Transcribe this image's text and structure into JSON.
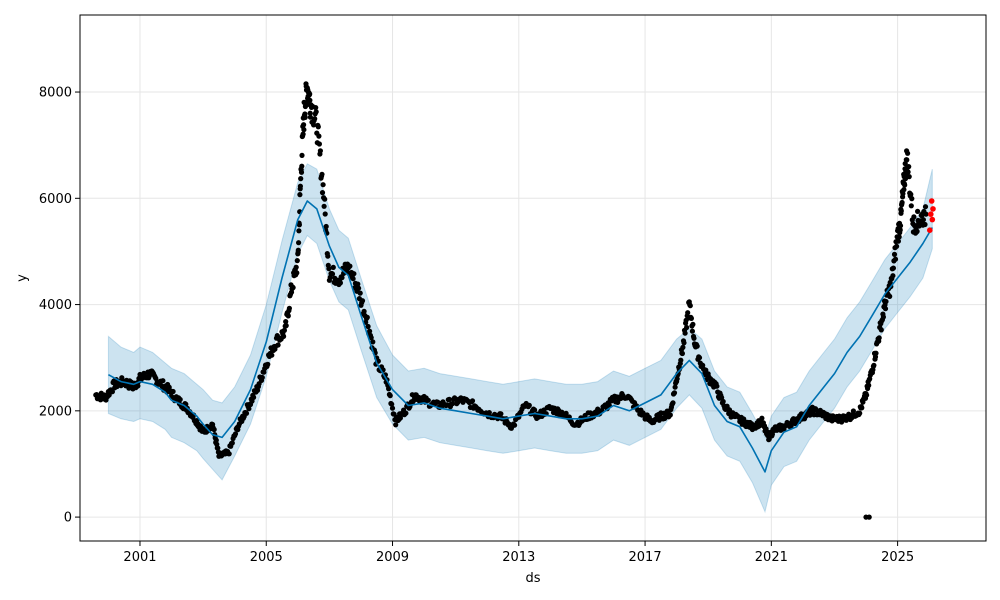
{
  "chart_data": {
    "type": "line",
    "title": "",
    "xlabel": "ds",
    "ylabel": "y",
    "grid": true,
    "xlim": [
      1999.1,
      2027.8
    ],
    "ylim": [
      -450,
      9450
    ],
    "x_ticks": [
      {
        "value": 2001,
        "label": "2001"
      },
      {
        "value": 2005,
        "label": "2005"
      },
      {
        "value": 2009,
        "label": "2009"
      },
      {
        "value": 2013,
        "label": "2013"
      },
      {
        "value": 2017,
        "label": "2017"
      },
      {
        "value": 2021,
        "label": "2021"
      },
      {
        "value": 2025,
        "label": "2025"
      }
    ],
    "y_ticks": [
      {
        "value": 0,
        "label": "0"
      },
      {
        "value": 2000,
        "label": "2000"
      },
      {
        "value": 4000,
        "label": "4000"
      },
      {
        "value": 6000,
        "label": "6000"
      },
      {
        "value": 8000,
        "label": "8000"
      }
    ],
    "colors": {
      "forecast": "#0072B2",
      "uncertainty": "#0072B2",
      "observed": "#000000",
      "recent": "#FF0000"
    },
    "forecast": {
      "x": [
        2000.0,
        2000.4,
        2000.8,
        2001.0,
        2001.4,
        2001.8,
        2002.0,
        2002.4,
        2002.8,
        2003.0,
        2003.3,
        2003.6,
        2004.0,
        2004.5,
        2005.0,
        2005.5,
        2006.0,
        2006.3,
        2006.6,
        2007.0,
        2007.3,
        2007.6,
        2008.0,
        2008.5,
        2009.0,
        2009.5,
        2010.0,
        2010.5,
        2011.0,
        2011.5,
        2012.0,
        2012.5,
        2013.0,
        2013.5,
        2014.0,
        2014.5,
        2015.0,
        2015.5,
        2016.0,
        2016.5,
        2017.0,
        2017.5,
        2018.0,
        2018.4,
        2018.8,
        2019.2,
        2019.6,
        2020.0,
        2020.4,
        2020.8,
        2021.0,
        2021.4,
        2021.8,
        2022.2,
        2022.6,
        2023.0,
        2023.4,
        2023.8,
        2024.2,
        2024.6,
        2025.0,
        2025.4,
        2025.8,
        2026.1
      ],
      "y": [
        2680,
        2550,
        2500,
        2550,
        2500,
        2350,
        2200,
        2100,
        1900,
        1750,
        1550,
        1500,
        1800,
        2400,
        3300,
        4500,
        5600,
        5950,
        5800,
        5100,
        4700,
        4550,
        3800,
        2900,
        2400,
        2100,
        2150,
        2050,
        2000,
        1950,
        1900,
        1850,
        1900,
        1950,
        1900,
        1850,
        1850,
        1900,
        2100,
        2000,
        2150,
        2300,
        2700,
        2950,
        2700,
        2100,
        1800,
        1700,
        1300,
        850,
        1250,
        1600,
        1700,
        2100,
        2400,
        2700,
        3100,
        3400,
        3800,
        4200,
        4500,
        4800,
        5150,
        5450
      ]
    },
    "uncertainty_band": {
      "x": [
        2000.0,
        2000.4,
        2000.8,
        2001.0,
        2001.4,
        2001.8,
        2002.0,
        2002.4,
        2002.8,
        2003.0,
        2003.3,
        2003.6,
        2004.0,
        2004.5,
        2005.0,
        2005.5,
        2006.0,
        2006.3,
        2006.6,
        2007.0,
        2007.3,
        2007.6,
        2008.0,
        2008.5,
        2009.0,
        2009.5,
        2010.0,
        2010.5,
        2011.0,
        2011.5,
        2012.0,
        2012.5,
        2013.0,
        2013.5,
        2014.0,
        2014.5,
        2015.0,
        2015.5,
        2016.0,
        2016.5,
        2017.0,
        2017.5,
        2018.0,
        2018.4,
        2018.8,
        2019.2,
        2019.6,
        2020.0,
        2020.4,
        2020.8,
        2021.0,
        2021.4,
        2021.8,
        2022.2,
        2022.6,
        2023.0,
        2023.4,
        2023.8,
        2024.2,
        2024.6,
        2025.0,
        2025.4,
        2025.8,
        2026.1
      ],
      "upper": [
        3400,
        3200,
        3100,
        3200,
        3100,
        2900,
        2800,
        2700,
        2500,
        2400,
        2200,
        2150,
        2450,
        3050,
        4000,
        5200,
        6300,
        6650,
        6550,
        5800,
        5400,
        5250,
        4500,
        3600,
        3050,
        2750,
        2800,
        2700,
        2650,
        2600,
        2550,
        2500,
        2550,
        2600,
        2550,
        2500,
        2500,
        2550,
        2750,
        2650,
        2800,
        2950,
        3350,
        3550,
        3350,
        2750,
        2450,
        2350,
        1950,
        1500,
        1900,
        2250,
        2350,
        2750,
        3050,
        3350,
        3750,
        4050,
        4450,
        4850,
        5150,
        5450,
        5800,
        6550
      ],
      "lower": [
        1950,
        1850,
        1800,
        1850,
        1800,
        1650,
        1500,
        1400,
        1250,
        1100,
        900,
        700,
        1150,
        1750,
        2650,
        3850,
        4950,
        5300,
        5150,
        4450,
        4050,
        3900,
        3150,
        2250,
        1750,
        1450,
        1500,
        1400,
        1350,
        1300,
        1250,
        1200,
        1250,
        1300,
        1250,
        1200,
        1200,
        1250,
        1450,
        1350,
        1500,
        1650,
        2050,
        2300,
        2050,
        1450,
        1150,
        1050,
        650,
        100,
        600,
        950,
        1050,
        1450,
        1750,
        2050,
        2450,
        2750,
        3150,
        3550,
        3850,
        4150,
        4500,
        5050
      ]
    },
    "observed": {
      "x": [
        1999.6,
        1999.9,
        2000.2,
        2000.5,
        2000.8,
        2001.0,
        2001.3,
        2001.6,
        2001.9,
        2002.2,
        2002.5,
        2002.8,
        2003.0,
        2003.3,
        2003.5,
        2003.8,
        2004.1,
        2004.4,
        2004.7,
        2005.0,
        2005.3,
        2005.6,
        2005.8,
        2006.0,
        2006.1,
        2006.2,
        2006.3,
        2006.4,
        2006.6,
        2006.8,
        2007.0,
        2007.3,
        2007.6,
        2007.9,
        2008.2,
        2008.5,
        2008.8,
        2009.1,
        2009.4,
        2009.7,
        2010.0,
        2010.4,
        2010.8,
        2011.2,
        2011.6,
        2012.0,
        2012.4,
        2012.8,
        2013.2,
        2013.6,
        2014.0,
        2014.4,
        2014.8,
        2015.2,
        2015.6,
        2016.0,
        2016.4,
        2016.8,
        2017.2,
        2017.5,
        2017.8,
        2018.0,
        2018.2,
        2018.4,
        2018.6,
        2018.9,
        2019.2,
        2019.5,
        2019.8,
        2020.1,
        2020.4,
        2020.7,
        2020.9,
        2021.1,
        2021.4,
        2021.7,
        2022.0,
        2022.3,
        2022.6,
        2022.9,
        2023.2,
        2023.5,
        2023.8,
        2024.0,
        2024.2,
        2024.4,
        2024.6,
        2024.8,
        2025.0,
        2025.1,
        2025.2,
        2025.3,
        2025.5,
        2025.7,
        2025.9
      ],
      "y": [
        2300,
        2250,
        2500,
        2550,
        2450,
        2600,
        2700,
        2550,
        2400,
        2200,
        2050,
        1800,
        1600,
        1750,
        1150,
        1200,
        1700,
        2050,
        2400,
        2900,
        3300,
        3500,
        4300,
        4800,
        6500,
        7600,
        8100,
        7800,
        7400,
        6200,
        4600,
        4500,
        4700,
        4300,
        3700,
        2900,
        2600,
        1800,
        2000,
        2300,
        2200,
        2100,
        2150,
        2200,
        2100,
        1950,
        1900,
        1700,
        2100,
        1900,
        2050,
        1950,
        1750,
        1900,
        2000,
        2200,
        2300,
        2000,
        1800,
        1900,
        1950,
        2600,
        3200,
        4000,
        3200,
        2700,
        2500,
        2100,
        1900,
        1800,
        1700,
        1800,
        1500,
        1650,
        1700,
        1800,
        1900,
        2000,
        1950,
        1850,
        1850,
        1900,
        2000,
        2300,
        2800,
        3400,
        4000,
        4400,
        5300,
        5600,
        6300,
        6800,
        5500,
        5600,
        5700
      ]
    },
    "outliers": {
      "x": [
        2024.0,
        2024.1
      ],
      "y": [
        0,
        0
      ]
    },
    "recent": {
      "x": [
        2026.02,
        2026.05,
        2026.08,
        2026.1,
        2026.12
      ],
      "y": [
        5400,
        5700,
        5950,
        5600,
        5800
      ]
    }
  }
}
